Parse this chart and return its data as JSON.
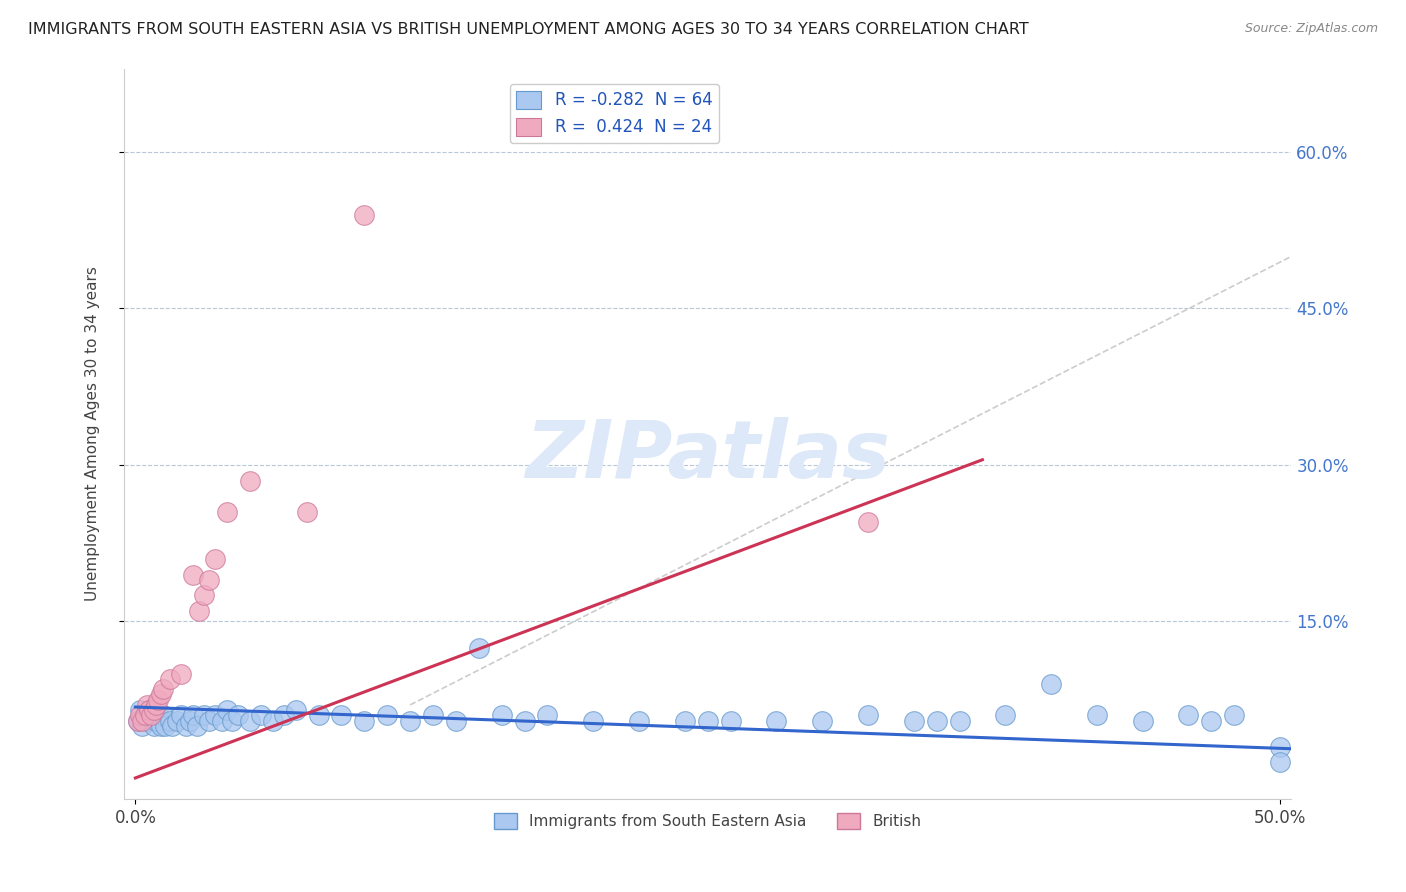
{
  "title": "IMMIGRANTS FROM SOUTH EASTERN ASIA VS BRITISH UNEMPLOYMENT AMONG AGES 30 TO 34 YEARS CORRELATION CHART",
  "source": "Source: ZipAtlas.com",
  "xlabel": "",
  "ylabel": "Unemployment Among Ages 30 to 34 years",
  "xlim": [
    -0.005,
    0.505
  ],
  "ylim": [
    -0.02,
    0.68
  ],
  "xtick_labels": [
    "0.0%",
    "50.0%"
  ],
  "xtick_vals": [
    0.0,
    0.5
  ],
  "ytick_labels": [
    "15.0%",
    "30.0%",
    "45.0%",
    "60.0%"
  ],
  "ytick_vals": [
    0.15,
    0.3,
    0.45,
    0.6
  ],
  "blue_R": -0.282,
  "blue_N": 64,
  "pink_R": 0.424,
  "pink_N": 24,
  "blue_color": "#aac8f0",
  "pink_color": "#f0aabf",
  "blue_edge": "#6699cc",
  "pink_edge": "#cc7799",
  "trend_blue": "#3366cc",
  "trend_pink": "#cc3355",
  "trend_gray": "#cccccc",
  "watermark": "ZIPatlas",
  "watermark_blue": "#dde8f8",
  "watermark_pink": "#f0c8d8",
  "legend_label_blue": "Immigrants from South Eastern Asia",
  "legend_label_pink": "British",
  "blue_trend_x0": 0.0,
  "blue_trend_y0": 0.068,
  "blue_trend_x1": 0.505,
  "blue_trend_y1": 0.028,
  "pink_trend_x0": 0.0,
  "pink_trend_y0": 0.0,
  "pink_trend_x1": 0.37,
  "pink_trend_y1": 0.305,
  "gray_trend_x0": 0.12,
  "gray_trend_y0": 0.07,
  "gray_trend_x1": 0.505,
  "gray_trend_y1": 0.5,
  "blue_scatter_x": [
    0.001,
    0.002,
    0.003,
    0.004,
    0.005,
    0.006,
    0.007,
    0.008,
    0.009,
    0.01,
    0.011,
    0.012,
    0.013,
    0.015,
    0.016,
    0.018,
    0.02,
    0.022,
    0.024,
    0.025,
    0.027,
    0.03,
    0.032,
    0.035,
    0.038,
    0.04,
    0.042,
    0.045,
    0.05,
    0.055,
    0.06,
    0.065,
    0.07,
    0.08,
    0.09,
    0.1,
    0.11,
    0.12,
    0.13,
    0.14,
    0.15,
    0.16,
    0.17,
    0.18,
    0.2,
    0.22,
    0.24,
    0.25,
    0.26,
    0.28,
    0.3,
    0.32,
    0.34,
    0.35,
    0.36,
    0.38,
    0.4,
    0.42,
    0.44,
    0.46,
    0.47,
    0.48,
    0.5,
    0.5
  ],
  "blue_scatter_y": [
    0.055,
    0.065,
    0.05,
    0.06,
    0.055,
    0.065,
    0.06,
    0.05,
    0.055,
    0.06,
    0.05,
    0.06,
    0.05,
    0.055,
    0.05,
    0.055,
    0.06,
    0.05,
    0.055,
    0.06,
    0.05,
    0.06,
    0.055,
    0.06,
    0.055,
    0.065,
    0.055,
    0.06,
    0.055,
    0.06,
    0.055,
    0.06,
    0.065,
    0.06,
    0.06,
    0.055,
    0.06,
    0.055,
    0.06,
    0.055,
    0.125,
    0.06,
    0.055,
    0.06,
    0.055,
    0.055,
    0.055,
    0.055,
    0.055,
    0.055,
    0.055,
    0.06,
    0.055,
    0.055,
    0.055,
    0.06,
    0.09,
    0.06,
    0.055,
    0.06,
    0.055,
    0.06,
    0.03,
    0.015
  ],
  "pink_scatter_x": [
    0.001,
    0.002,
    0.003,
    0.004,
    0.005,
    0.006,
    0.007,
    0.008,
    0.009,
    0.01,
    0.011,
    0.012,
    0.015,
    0.02,
    0.025,
    0.028,
    0.03,
    0.032,
    0.035,
    0.04,
    0.05,
    0.075,
    0.1,
    0.32
  ],
  "pink_scatter_y": [
    0.055,
    0.06,
    0.055,
    0.06,
    0.07,
    0.065,
    0.06,
    0.065,
    0.07,
    0.075,
    0.08,
    0.085,
    0.095,
    0.1,
    0.195,
    0.16,
    0.175,
    0.19,
    0.21,
    0.255,
    0.285,
    0.255,
    0.54,
    0.245
  ]
}
